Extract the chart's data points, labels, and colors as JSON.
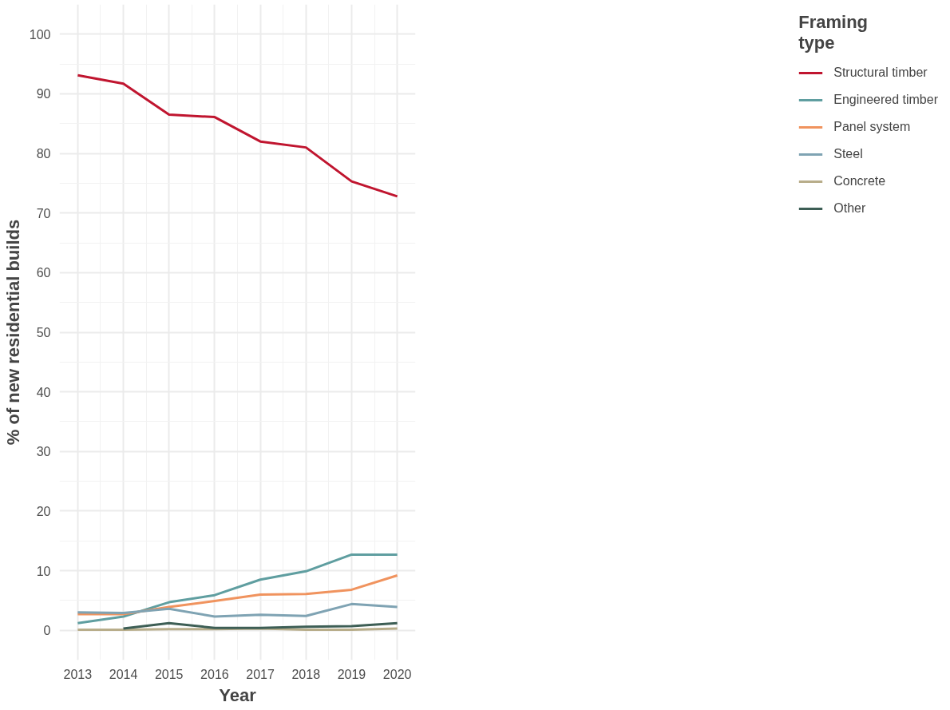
{
  "chart_data": {
    "type": "line",
    "xlabel": "Year",
    "ylabel": "% of new residential builds",
    "legend_title": "Framing\ntype",
    "x": [
      2013,
      2014,
      2015,
      2016,
      2017,
      2018,
      2019,
      2020
    ],
    "series": [
      {
        "name": "Structural timber",
        "color": "#c0152f",
        "values": [
          93.1,
          91.7,
          86.5,
          86.1,
          82.0,
          81.0,
          75.3,
          72.8
        ]
      },
      {
        "name": "Engineered timber",
        "color": "#5f9ea0",
        "values": [
          1.2,
          2.3,
          4.7,
          5.9,
          8.5,
          9.9,
          12.7,
          12.7
        ]
      },
      {
        "name": "Panel system",
        "color": "#f0935e",
        "values": [
          2.7,
          2.7,
          3.9,
          4.9,
          6.0,
          6.1,
          6.8,
          9.2
        ]
      },
      {
        "name": "Steel",
        "color": "#7fa3b3",
        "values": [
          3.0,
          2.9,
          3.6,
          2.3,
          2.6,
          2.4,
          4.4,
          3.9
        ]
      },
      {
        "name": "Concrete",
        "color": "#b8ad8a",
        "values": [
          0.1,
          0.1,
          0.2,
          0.2,
          0.3,
          0.1,
          0.1,
          0.3
        ]
      },
      {
        "name": "Other",
        "color": "#3d5e55",
        "values": [
          null,
          0.3,
          1.2,
          0.4,
          0.4,
          0.6,
          0.7,
          1.2
        ]
      }
    ],
    "xlim": [
      2012.6,
      2020.4
    ],
    "ylim": [
      -5,
      105
    ],
    "xticks": [
      2013,
      2014,
      2015,
      2016,
      2017,
      2018,
      2019,
      2020
    ],
    "yticks": [
      0,
      10,
      20,
      30,
      40,
      50,
      60,
      70,
      80,
      90,
      100
    ],
    "grid": true,
    "legend": "right",
    "line_style": "solid",
    "marker": "none"
  }
}
